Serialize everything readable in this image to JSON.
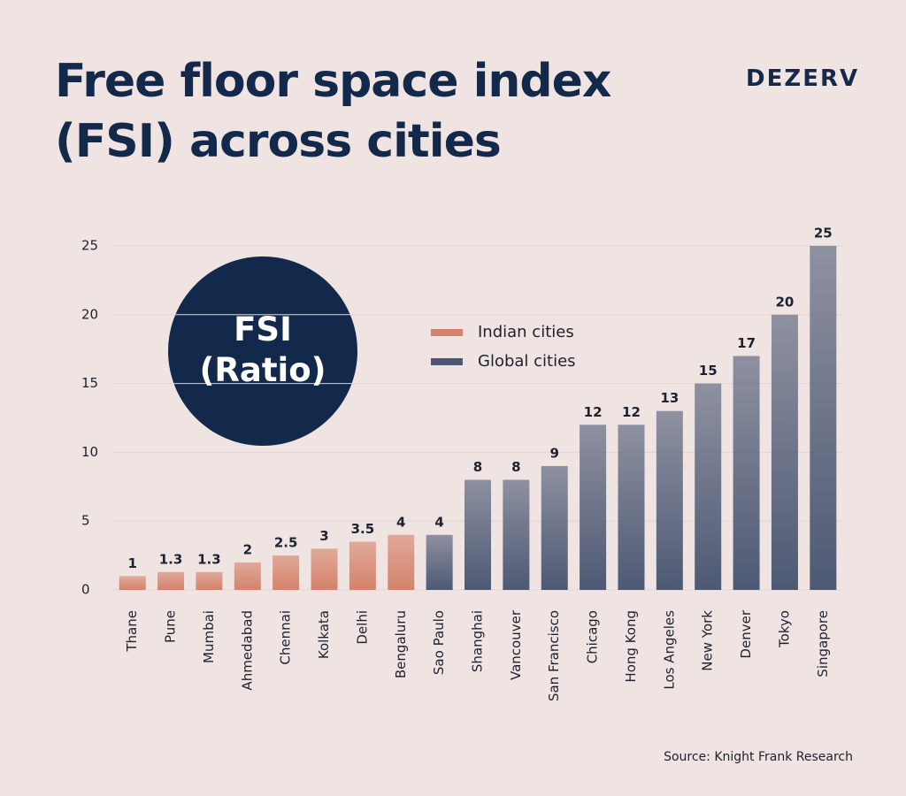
{
  "brand": "DEZERV",
  "chart_data": {
    "type": "bar",
    "title": "Free floor space index (FSI) across cities",
    "ylabel": "FSI (Ratio)",
    "source": "Source: Knight Frank Research",
    "categories": [
      "Thane",
      "Pune",
      "Mumbai",
      "Ahmedabad",
      "Chennai",
      "Kolkata",
      "Delhi",
      "Bengaluru",
      "Sao Paulo",
      "Shanghai",
      "Vancouver",
      "San Francisco",
      "Chicago",
      "Hong Kong",
      "Los Angeles",
      "New York",
      "Denver",
      "Tokyo",
      "Singapore"
    ],
    "series": [
      {
        "name": "Indian cities",
        "color": "#d4826a",
        "values": [
          1,
          1.3,
          1.3,
          2,
          2.5,
          3,
          3.5,
          4,
          null,
          null,
          null,
          null,
          null,
          null,
          null,
          null,
          null,
          null,
          null
        ]
      },
      {
        "name": "Global cities",
        "color": "#4d5974",
        "values": [
          null,
          null,
          null,
          null,
          null,
          null,
          null,
          null,
          4,
          8,
          8,
          9,
          12,
          12,
          13,
          15,
          17,
          20,
          25
        ]
      }
    ],
    "ylim": [
      0,
      25
    ],
    "yticks": [
      0,
      5,
      10,
      15,
      20,
      25
    ],
    "grid": true
  }
}
